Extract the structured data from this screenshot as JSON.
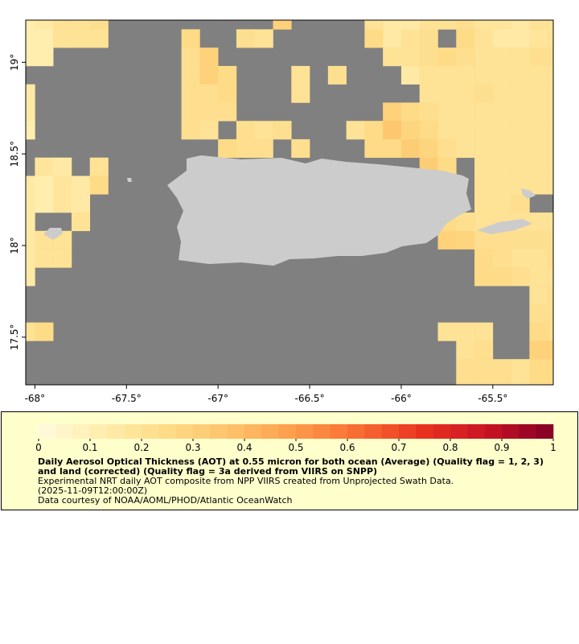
{
  "map": {
    "xlim": [
      -68.05,
      -65.17
    ],
    "ylim": [
      17.24,
      19.23
    ],
    "xticks": [
      {
        "value": -68,
        "label": "-68°"
      },
      {
        "value": -67.5,
        "label": "-67.5°"
      },
      {
        "value": -67,
        "label": "-67°"
      },
      {
        "value": -66.5,
        "label": "-66.5°"
      },
      {
        "value": -66,
        "label": "-66°"
      },
      {
        "value": -65.5,
        "label": "-65.5°"
      }
    ],
    "yticks": [
      {
        "value": 17.5,
        "label": "17.5°"
      },
      {
        "value": 18,
        "label": "18°"
      },
      {
        "value": 18.5,
        "label": "18.5°"
      },
      {
        "value": 19,
        "label": "19°"
      }
    ],
    "grid": {
      "west": -68.1,
      "north": 19.28,
      "step": 0.1,
      "values": [
        [
          0.12,
          0.15,
          0.2,
          0.2,
          0.22,
          null,
          null,
          null,
          null,
          null,
          null,
          null,
          null,
          null,
          0.3,
          null,
          null,
          null,
          null,
          0.2,
          0.15,
          0.15,
          0.2,
          0.2,
          0.22,
          0.18,
          0.18,
          0.15,
          0.2,
          0.2
        ],
        [
          0.12,
          0.12,
          0.2,
          0.2,
          0.2,
          null,
          null,
          null,
          null,
          0.25,
          null,
          null,
          0.22,
          0.2,
          null,
          null,
          null,
          null,
          null,
          0.25,
          0.15,
          0.2,
          0.22,
          null,
          0.25,
          0.2,
          0.15,
          0.15,
          0.18,
          0.2
        ],
        [
          0.12,
          0.12,
          null,
          null,
          null,
          null,
          null,
          null,
          null,
          0.22,
          0.3,
          null,
          null,
          null,
          null,
          null,
          null,
          null,
          null,
          null,
          0.2,
          0.2,
          0.22,
          0.25,
          0.22,
          0.2,
          0.2,
          0.2,
          0.22,
          0.22
        ],
        [
          null,
          null,
          null,
          null,
          null,
          null,
          null,
          null,
          null,
          0.22,
          0.3,
          0.25,
          null,
          null,
          null,
          0.2,
          null,
          0.22,
          null,
          null,
          null,
          0.15,
          0.2,
          0.2,
          0.2,
          0.2,
          0.2,
          0.2,
          0.2,
          0.2
        ],
        [
          0.15,
          null,
          null,
          null,
          null,
          null,
          null,
          null,
          null,
          0.22,
          0.22,
          0.25,
          null,
          null,
          null,
          0.2,
          null,
          null,
          null,
          null,
          null,
          null,
          0.2,
          0.2,
          0.2,
          0.22,
          0.2,
          0.2,
          0.2,
          0.2
        ],
        [
          0.15,
          null,
          null,
          null,
          null,
          null,
          null,
          null,
          null,
          0.22,
          0.22,
          0.22,
          null,
          null,
          null,
          null,
          null,
          null,
          null,
          null,
          0.3,
          0.25,
          0.22,
          0.2,
          0.2,
          0.2,
          0.2,
          0.2,
          0.2,
          0.2
        ],
        [
          0.12,
          null,
          null,
          null,
          null,
          null,
          null,
          null,
          null,
          0.22,
          0.2,
          null,
          0.22,
          0.2,
          0.22,
          null,
          null,
          null,
          0.2,
          0.25,
          0.35,
          0.28,
          0.25,
          0.2,
          0.2,
          0.2,
          0.2,
          0.2,
          0.2,
          0.2
        ],
        [
          null,
          null,
          null,
          null,
          null,
          null,
          null,
          null,
          null,
          null,
          null,
          0.25,
          0.22,
          0.22,
          null,
          0.22,
          null,
          null,
          null,
          0.25,
          0.25,
          0.32,
          0.28,
          0.22,
          0.2,
          0.2,
          0.2,
          0.2,
          0.2,
          0.2
        ],
        [
          null,
          0.18,
          0.15,
          null,
          0.2,
          null,
          null,
          null,
          null,
          null,
          null,
          null,
          null,
          null,
          null,
          null,
          null,
          null,
          null,
          null,
          null,
          null,
          0.32,
          0.25,
          null,
          0.2,
          0.2,
          0.2,
          0.2,
          0.2
        ],
        [
          0.15,
          0.12,
          0.18,
          0.15,
          0.25,
          null,
          null,
          null,
          null,
          null,
          null,
          null,
          null,
          null,
          null,
          null,
          null,
          null,
          null,
          null,
          null,
          null,
          null,
          null,
          null,
          0.2,
          0.2,
          0.2,
          0.2,
          0.2
        ],
        [
          0.15,
          0.12,
          0.18,
          0.15,
          null,
          null,
          null,
          null,
          null,
          null,
          null,
          null,
          null,
          null,
          null,
          null,
          null,
          null,
          null,
          null,
          null,
          null,
          null,
          null,
          null,
          0.2,
          0.2,
          0.22,
          null,
          null
        ],
        [
          0.15,
          null,
          null,
          0.2,
          null,
          null,
          null,
          null,
          null,
          null,
          null,
          null,
          null,
          null,
          null,
          null,
          null,
          null,
          null,
          null,
          null,
          null,
          null,
          0.25,
          0.22,
          0.2,
          0.2,
          0.2,
          0.2,
          0.2
        ],
        [
          0.15,
          0.2,
          0.2,
          null,
          null,
          null,
          null,
          null,
          null,
          null,
          null,
          null,
          null,
          null,
          null,
          null,
          null,
          null,
          null,
          null,
          null,
          null,
          null,
          0.3,
          0.28,
          0.22,
          0.22,
          0.22,
          0.22,
          0.22
        ],
        [
          0.15,
          0.2,
          0.2,
          null,
          null,
          null,
          null,
          null,
          null,
          null,
          null,
          null,
          null,
          null,
          null,
          null,
          null,
          null,
          null,
          null,
          null,
          null,
          null,
          null,
          null,
          0.25,
          0.22,
          0.2,
          0.2,
          0.22
        ],
        [
          0.15,
          null,
          null,
          null,
          null,
          null,
          null,
          null,
          null,
          null,
          null,
          null,
          null,
          null,
          null,
          null,
          null,
          null,
          null,
          null,
          null,
          null,
          null,
          null,
          null,
          0.25,
          0.25,
          0.22,
          0.2,
          0.2
        ],
        [
          null,
          null,
          null,
          null,
          null,
          null,
          null,
          null,
          null,
          null,
          null,
          null,
          null,
          null,
          null,
          null,
          null,
          null,
          null,
          null,
          null,
          null,
          null,
          null,
          null,
          null,
          null,
          null,
          0.2,
          0.22
        ],
        [
          null,
          null,
          null,
          null,
          null,
          null,
          null,
          null,
          null,
          null,
          null,
          null,
          null,
          null,
          null,
          null,
          null,
          null,
          null,
          null,
          null,
          null,
          null,
          null,
          null,
          null,
          null,
          null,
          0.22,
          0.22
        ],
        [
          0.2,
          0.25,
          null,
          null,
          null,
          null,
          null,
          null,
          null,
          null,
          null,
          null,
          null,
          null,
          null,
          null,
          null,
          null,
          null,
          null,
          null,
          null,
          null,
          0.2,
          0.2,
          0.2,
          null,
          null,
          0.25,
          0.22
        ],
        [
          null,
          null,
          null,
          null,
          null,
          null,
          null,
          null,
          null,
          null,
          null,
          null,
          null,
          null,
          null,
          null,
          null,
          null,
          null,
          null,
          null,
          null,
          null,
          null,
          0.2,
          0.22,
          null,
          null,
          0.3,
          0.3
        ],
        [
          null,
          null,
          null,
          null,
          null,
          null,
          null,
          null,
          null,
          null,
          null,
          null,
          null,
          null,
          null,
          null,
          null,
          null,
          null,
          null,
          null,
          null,
          null,
          null,
          0.22,
          0.22,
          0.22,
          0.2,
          0.25,
          0.25
        ],
        [
          null,
          null,
          null,
          null,
          null,
          null,
          null,
          null,
          null,
          null,
          null,
          null,
          null,
          null,
          null,
          null,
          null,
          null,
          null,
          null,
          null,
          null,
          null,
          null,
          0.22,
          0.22,
          0.22,
          0.2,
          0.25,
          0.25
        ]
      ]
    },
    "no_data_color": "#808080",
    "land_color": "#cccccc",
    "colorbar": {
      "range": [
        0,
        1
      ],
      "ticks": [
        0,
        0.1,
        0.2,
        0.3,
        0.4,
        0.5,
        0.6,
        0.7,
        0.8,
        0.9,
        1
      ],
      "colormap": [
        "#fffbe0",
        "#ffedac",
        "#fedb86",
        "#fdc26a",
        "#fd9c4a",
        "#f86a32",
        "#e8321f",
        "#c81224",
        "#800026"
      ]
    },
    "legend": {
      "title": "Daily Aerosol Optical Thickness (AOT) at 0.55 micron for both ocean (Average) (Quality flag = 1, 2, 3) and land (corrected) (Quality flag = 3a derived from VIIRS on SNPP)",
      "description": "Experimental NRT daily AOT composite from NPP VIIRS created from Unprojected Swath Data.",
      "time": "(2025-11-09T12:00:00Z)",
      "credit": "Data courtesy of NOAA/AOML/PHOD/Atlantic OceanWatch"
    }
  }
}
